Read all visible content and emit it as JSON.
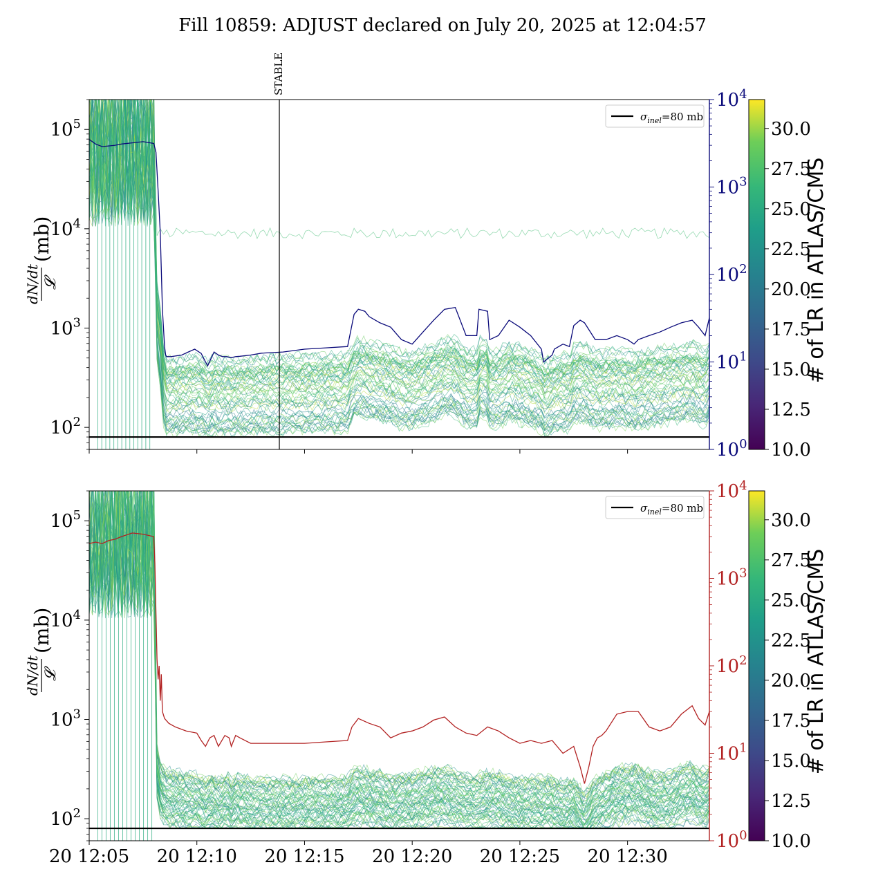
{
  "figure": {
    "title": "Fill 10859: ADJUST declared on July 20, 2025 at 12:04:57"
  },
  "colors": {
    "top_secondary": "#0a0a7a",
    "bottom_secondary": "#b22222",
    "reference_line": "#000000",
    "colormap": "viridis"
  },
  "chart_data": [
    {
      "type": "line",
      "panel": "top",
      "xlabel": "",
      "ylabel": "(mb)",
      "ylabel_fraction": {
        "numerator": "dN/dt",
        "denominator": "𝓛"
      },
      "yscale": "log",
      "ylim": [
        60,
        200000
      ],
      "y_ticks": [
        {
          "value": 100,
          "base": "10",
          "exp": "2"
        },
        {
          "value": 1000,
          "base": "10",
          "exp": "3"
        },
        {
          "value": 10000,
          "base": "10",
          "exp": "4"
        },
        {
          "value": 100000,
          "base": "10",
          "exp": "5"
        }
      ],
      "x_ticks": [
        "20 12:05",
        "20 12:10",
        "20 12:15",
        "20 12:20",
        "20 12:25",
        "20 12:30"
      ],
      "x_ticks_shown": false,
      "x_range_minutes": [
        0,
        28.8
      ],
      "secondary_y": {
        "scale": "log",
        "ylim": [
          1,
          10000
        ],
        "color": "#0a0a7a",
        "ticks": [
          {
            "value": 1,
            "base": "10",
            "exp": "0"
          },
          {
            "value": 10,
            "base": "10",
            "exp": "1"
          },
          {
            "value": 100,
            "base": "10",
            "exp": "2"
          },
          {
            "value": 1000,
            "base": "10",
            "exp": "3"
          },
          {
            "value": 10000,
            "base": "10",
            "exp": "4"
          }
        ],
        "series": {
          "x_minutes": [
            0,
            0.3,
            0.6,
            0.9,
            1.2,
            1.5,
            2.0,
            2.5,
            3.0,
            3.1,
            3.2,
            3.3,
            3.4,
            3.5,
            3.55,
            3.6,
            3.7,
            3.8,
            4.0,
            4.3,
            4.6,
            4.9,
            5.2,
            5.5,
            5.8,
            6.0,
            6.2,
            6.4,
            6.6,
            6.8,
            7.0,
            7.5,
            8.0,
            9.0,
            10.0,
            11.0,
            12.0,
            12.3,
            12.5,
            12.8,
            13.0,
            13.5,
            14.0,
            14.5,
            15.0,
            15.5,
            16.0,
            16.5,
            17.0,
            17.5,
            18.0,
            18.1,
            18.5,
            18.6,
            19.0,
            19.5,
            20.0,
            20.5,
            21.0,
            21.1,
            21.5,
            21.6,
            22.0,
            22.3,
            22.5,
            22.8,
            23.0,
            23.5,
            24.0,
            24.5,
            25.0,
            25.3,
            25.5,
            26.0,
            26.5,
            27.0,
            27.5,
            28.0,
            28.3,
            28.6,
            28.8
          ],
          "values": [
            3500,
            3100,
            2900,
            2950,
            3000,
            3100,
            3200,
            3300,
            3150,
            2500,
            900,
            300,
            40,
            15,
            12,
            11.5,
            11.5,
            11.5,
            11.7,
            12,
            13,
            14,
            12.5,
            9,
            13,
            12,
            11.5,
            11.5,
            11.2,
            11.5,
            11.6,
            12,
            12.6,
            13,
            14,
            14.5,
            15,
            35,
            40,
            38,
            33,
            28,
            25,
            18,
            16,
            22,
            30,
            40,
            42,
            20,
            20,
            40,
            38,
            18,
            20,
            30,
            25,
            20,
            14,
            10,
            12,
            14,
            16,
            15,
            26,
            30,
            28,
            18,
            18,
            20,
            18,
            16,
            18,
            20,
            22,
            25,
            28,
            30,
            25,
            20,
            32
          ]
        }
      },
      "reference_line": {
        "value": 80,
        "label": "σ_inel=80 mb"
      },
      "legend": {
        "position": "top-right",
        "entries": [
          {
            "symbol": "σ",
            "subscript": "inel",
            "suffix": "=80 mb"
          }
        ]
      },
      "annotation": {
        "label": "STABLE",
        "x_minute": 8.83
      },
      "bundle": {
        "count": 60,
        "base_level_range": [
          100,
          600
        ],
        "spike_end_minute": 3.0,
        "spike_level": 60000
      }
    },
    {
      "type": "line",
      "panel": "bottom",
      "xlabel": "",
      "ylabel": "(mb)",
      "ylabel_fraction": {
        "numerator": "dN/dt",
        "denominator": "𝓛"
      },
      "yscale": "log",
      "ylim": [
        60,
        200000
      ],
      "y_ticks": [
        {
          "value": 100,
          "base": "10",
          "exp": "2"
        },
        {
          "value": 1000,
          "base": "10",
          "exp": "3"
        },
        {
          "value": 10000,
          "base": "10",
          "exp": "4"
        },
        {
          "value": 100000,
          "base": "10",
          "exp": "5"
        }
      ],
      "x_ticks": [
        "20 12:05",
        "20 12:10",
        "20 12:15",
        "20 12:20",
        "20 12:25",
        "20 12:30"
      ],
      "x_ticks_shown": true,
      "x_range_minutes": [
        0,
        28.8
      ],
      "secondary_y": {
        "scale": "log",
        "ylim": [
          1,
          10000
        ],
        "color": "#b22222",
        "ticks": [
          {
            "value": 1,
            "base": "10",
            "exp": "0"
          },
          {
            "value": 10,
            "base": "10",
            "exp": "1"
          },
          {
            "value": 100,
            "base": "10",
            "exp": "2"
          },
          {
            "value": 1000,
            "base": "10",
            "exp": "3"
          },
          {
            "value": 10000,
            "base": "10",
            "exp": "4"
          }
        ],
        "series": {
          "x_minutes": [
            0,
            0.3,
            0.6,
            0.9,
            1.2,
            1.5,
            2.0,
            2.5,
            3.0,
            3.05,
            3.1,
            3.15,
            3.2,
            3.25,
            3.3,
            3.35,
            3.4,
            3.5,
            3.7,
            4.0,
            4.5,
            5.0,
            5.2,
            5.4,
            5.6,
            5.8,
            6.0,
            6.3,
            6.5,
            6.6,
            6.8,
            7.0,
            7.5,
            8.0,
            9.0,
            10.0,
            11.0,
            12.0,
            12.2,
            12.5,
            13.0,
            13.5,
            14.0,
            14.5,
            15.0,
            15.5,
            16.0,
            16.5,
            17.0,
            17.5,
            18.0,
            18.5,
            19.0,
            19.5,
            20.0,
            20.5,
            21.0,
            21.5,
            22.0,
            22.5,
            22.8,
            23.0,
            23.2,
            23.4,
            23.6,
            23.8,
            24.0,
            24.5,
            25.0,
            25.5,
            26.0,
            26.5,
            27.0,
            27.5,
            28.0,
            28.3,
            28.6,
            28.8
          ],
          "values": [
            2500,
            2600,
            2500,
            2700,
            2800,
            3000,
            3300,
            3200,
            3000,
            1500,
            400,
            120,
            70,
            100,
            40,
            80,
            30,
            25,
            22,
            20,
            18,
            17,
            14,
            12,
            15,
            16,
            12,
            16,
            15,
            12,
            16,
            15,
            13,
            13,
            13,
            13,
            13.5,
            14,
            20,
            25,
            22,
            20,
            15,
            17,
            18,
            20,
            24,
            26,
            20,
            17,
            16,
            20,
            18,
            15,
            13,
            14,
            13,
            14,
            10,
            12,
            7,
            4.5,
            7,
            12,
            15,
            16,
            18,
            28,
            30,
            30,
            20,
            18,
            20,
            28,
            35,
            25,
            21,
            30
          ]
        }
      },
      "reference_line": {
        "value": 80,
        "label": "σ_inel=80 mb"
      },
      "legend": {
        "position": "top-right",
        "entries": [
          {
            "symbol": "σ",
            "subscript": "inel",
            "suffix": "=80 mb"
          }
        ]
      },
      "bundle": {
        "count": 60,
        "base_level_range": [
          80,
          300
        ],
        "spike_end_minute": 3.1,
        "spike_level": 60000
      }
    }
  ],
  "colorbars": [
    {
      "label": "# of LR in ATLAS/CMS",
      "range": [
        10.0,
        31.8
      ],
      "ticks": [
        "10.0",
        "12.5",
        "15.0",
        "17.5",
        "20.0",
        "22.5",
        "25.0",
        "27.5",
        "30.0"
      ]
    },
    {
      "label": "# of LR in ATLAS/CMS",
      "range": [
        10.0,
        31.8
      ],
      "ticks": [
        "10.0",
        "12.5",
        "15.0",
        "17.5",
        "20.0",
        "22.5",
        "25.0",
        "27.5",
        "30.0"
      ]
    }
  ]
}
